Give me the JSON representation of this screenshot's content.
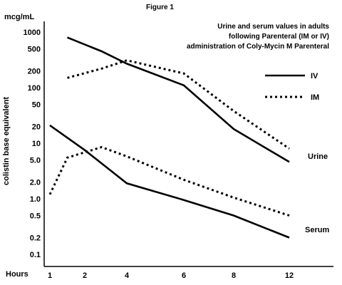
{
  "chart_data": {
    "type": "line",
    "figure_label": "Figure 1",
    "title_lines": [
      "Urine and serum values in adults",
      "following Parenteral (IM or IV)",
      "administration of Coly-Mycin M Parenteral"
    ],
    "y_unit": "mcg/mL",
    "ylabel": "colistin base equivalent",
    "xlabel": "Hours",
    "y_scale": "log",
    "ylim": [
      0.1,
      1000
    ],
    "y_ticks": [
      "1000",
      "500",
      "200",
      "100",
      "50",
      "20",
      "10",
      "5.0",
      "2.0",
      "1.0",
      "0.5",
      "0.2",
      "0.1"
    ],
    "y_tick_values": [
      1000,
      500,
      200,
      100,
      50,
      20,
      10,
      5,
      2,
      1,
      0.5,
      0.2,
      0.1
    ],
    "x_ticks": [
      "1",
      "2",
      "4",
      "6",
      "8",
      "12"
    ],
    "legend": [
      {
        "name": "IV",
        "style": "solid"
      },
      {
        "name": "IM",
        "style": "dotted"
      }
    ],
    "legend_position": "right",
    "groups": [
      {
        "label": "Urine",
        "series": [
          {
            "name": "IV",
            "style": "solid",
            "points": [
              [
                1.5,
                800
              ],
              [
                2.8,
                450
              ],
              [
                4,
                270
              ],
              [
                6,
                110
              ],
              [
                8,
                18
              ],
              [
                12,
                4.6
              ]
            ]
          },
          {
            "name": "IM",
            "style": "dotted",
            "points": [
              [
                1.5,
                150
              ],
              [
                2.8,
                220
              ],
              [
                4,
                310
              ],
              [
                6,
                180
              ],
              [
                8,
                38
              ],
              [
                12,
                8
              ]
            ]
          }
        ]
      },
      {
        "label": "Serum",
        "series": [
          {
            "name": "IV",
            "style": "solid",
            "points": [
              [
                1,
                21
              ],
              [
                2,
                7.5
              ],
              [
                4,
                1.9
              ],
              [
                6,
                0.95
              ],
              [
                8,
                0.5
              ],
              [
                12,
                0.2
              ]
            ]
          },
          {
            "name": "IM",
            "style": "dotted",
            "points": [
              [
                1,
                1.2
              ],
              [
                1.5,
                5.5
              ],
              [
                2.8,
                8.5
              ],
              [
                4,
                5.8
              ],
              [
                6,
                2.2
              ],
              [
                8,
                1.05
              ],
              [
                12,
                0.5
              ]
            ]
          }
        ]
      }
    ],
    "grid": false,
    "colors": {
      "line": "#000000",
      "background": "#ffffff"
    }
  }
}
